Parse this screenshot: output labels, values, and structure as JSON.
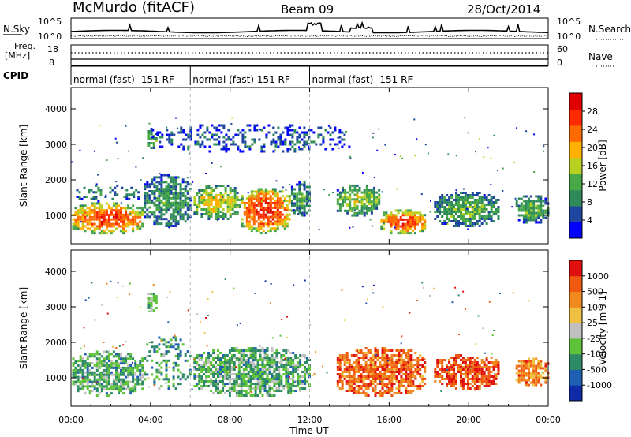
{
  "header": {
    "station": "McMurdo (fitACF)",
    "beam": "Beam 09",
    "date": "28/Oct/2014"
  },
  "top_panel": {
    "left_label": "N.Sky",
    "right_label": "N.Search",
    "left_ticks": [
      "10^5",
      "10^0"
    ],
    "right_ticks": [
      "10^5",
      "10^0"
    ]
  },
  "freq_panel": {
    "left_label_1": "Freq.",
    "left_label_2": "[MHz]",
    "right_label": "Nave",
    "left_ticks": [
      "18",
      "8"
    ],
    "right_ticks": [
      "60",
      "0"
    ]
  },
  "cpid": {
    "label": "CPID",
    "segments": [
      {
        "label": "normal (fast) -151 RF",
        "start_hour": 0,
        "end_hour": 6
      },
      {
        "label": "normal (fast) 151 RF",
        "start_hour": 6,
        "end_hour": 12
      },
      {
        "label": "normal (fast) -151 RF",
        "start_hour": 12,
        "end_hour": 24
      }
    ]
  },
  "colors": {
    "power_scale": [
      "#0000ff",
      "#1e46a0",
      "#2f8a5a",
      "#48a848",
      "#b8d020",
      "#ffb000",
      "#ff6a00",
      "#ff2a00",
      "#e00000"
    ],
    "velocity_scale": [
      "#0f2ba8",
      "#1e5fb4",
      "#2e8a64",
      "#5ec23a",
      "#c0c0c0",
      "#f0c040",
      "#f08a1e",
      "#f05a10",
      "#e01010"
    ]
  },
  "chart_data": [
    {
      "type": "heatmap",
      "name": "power",
      "ylabel": "Slant Range [km]",
      "yticks": [
        "1000",
        "2000",
        "3000",
        "4000"
      ],
      "ylim": [
        200,
        4600
      ],
      "xlim": [
        0,
        24
      ],
      "colorbar_label": "Power [dB]",
      "colorbar_ticks": [
        "4",
        "8",
        "12",
        "16",
        "20",
        "24",
        "28"
      ],
      "colorbar_range": [
        0,
        32
      ],
      "patches": [
        {
          "t0": 0.0,
          "t1": 3.6,
          "r0": 500,
          "r1": 1400,
          "level": 0.85
        },
        {
          "t0": 0.2,
          "t1": 3.4,
          "r0": 1400,
          "r1": 1900,
          "level": 0.3
        },
        {
          "t0": 3.6,
          "t1": 6.0,
          "r0": 700,
          "r1": 2200,
          "level": 0.35
        },
        {
          "t0": 3.8,
          "t1": 4.3,
          "r0": 2900,
          "r1": 3500,
          "level": 0.45
        },
        {
          "t0": 6.1,
          "t1": 8.5,
          "r0": 900,
          "r1": 1900,
          "level": 0.55
        },
        {
          "t0": 8.5,
          "t1": 11.0,
          "r0": 500,
          "r1": 1800,
          "level": 0.9
        },
        {
          "t0": 11.0,
          "t1": 12.0,
          "r0": 1000,
          "r1": 2000,
          "level": 0.35
        },
        {
          "t0": 13.3,
          "t1": 15.5,
          "r0": 1000,
          "r1": 1900,
          "level": 0.5
        },
        {
          "t0": 15.5,
          "t1": 17.8,
          "r0": 500,
          "r1": 1200,
          "level": 0.85
        },
        {
          "t0": 18.2,
          "t1": 21.5,
          "r0": 700,
          "r1": 1700,
          "level": 0.4
        },
        {
          "t0": 22.3,
          "t1": 24.0,
          "r0": 800,
          "r1": 1600,
          "level": 0.4
        },
        {
          "t0": 4.0,
          "t1": 14.0,
          "r0": 2800,
          "r1": 3600,
          "level": 0.2
        }
      ]
    },
    {
      "type": "heatmap",
      "name": "velocity",
      "ylabel": "Slant Range [km]",
      "yticks": [
        "1000",
        "2000",
        "3000",
        "4000"
      ],
      "ylim": [
        200,
        4600
      ],
      "xlim": [
        0,
        24
      ],
      "colorbar_label": "Velocity [m s-1]",
      "colorbar_ticks": [
        "-1000",
        "-500",
        "-100",
        "-25",
        "25",
        "100",
        "500",
        "1000"
      ],
      "patches": [
        {
          "t0": 0.0,
          "t1": 3.6,
          "r0": 500,
          "r1": 1800,
          "level": 0.35
        },
        {
          "t0": 3.6,
          "t1": 6.0,
          "r0": 700,
          "r1": 2200,
          "level": 0.3
        },
        {
          "t0": 3.8,
          "t1": 4.3,
          "r0": 2900,
          "r1": 3500,
          "level": 0.4
        },
        {
          "t0": 6.1,
          "t1": 12.0,
          "r0": 500,
          "r1": 1900,
          "level": 0.35
        },
        {
          "t0": 13.3,
          "t1": 17.8,
          "r0": 500,
          "r1": 1900,
          "level": 0.8
        },
        {
          "t0": 18.2,
          "t1": 21.5,
          "r0": 700,
          "r1": 1700,
          "level": 0.85
        },
        {
          "t0": 22.3,
          "t1": 24.0,
          "r0": 800,
          "r1": 1600,
          "level": 0.75
        }
      ]
    }
  ],
  "xaxis": {
    "label": "Time UT",
    "ticks": [
      "00:00",
      "04:00",
      "08:00",
      "12:00",
      "16:00",
      "20:00",
      "00:00"
    ]
  }
}
